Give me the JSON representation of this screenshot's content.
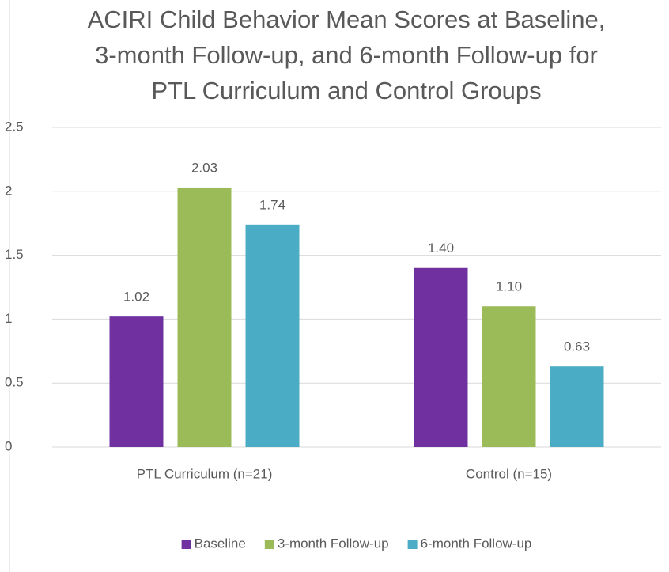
{
  "chart_data": {
    "type": "bar",
    "title": "ACIRI Child Behavior Mean Scores at Baseline, 3-month Follow-up, and 6-month Follow-up for PTL Curriculum and Control Groups",
    "categories": [
      "PTL Curriculum (n=21)",
      "Control (n=15)"
    ],
    "series": [
      {
        "name": "Baseline",
        "color": "#7030a0",
        "values": [
          1.02,
          1.4
        ],
        "value_labels": [
          "1.02",
          "1.40"
        ]
      },
      {
        "name": "3-month Follow-up",
        "color": "#9bbb59",
        "values": [
          2.03,
          1.1
        ],
        "value_labels": [
          "2.03",
          "1.10"
        ]
      },
      {
        "name": "6-month Follow-up",
        "color": "#4bacc6",
        "values": [
          1.74,
          0.63
        ],
        "value_labels": [
          "1.74",
          "0.63"
        ]
      }
    ],
    "ylim": [
      0,
      2.5
    ],
    "yticks": [
      0,
      0.5,
      1,
      1.5,
      2,
      2.5
    ],
    "grid": true,
    "legend": "bottom"
  }
}
